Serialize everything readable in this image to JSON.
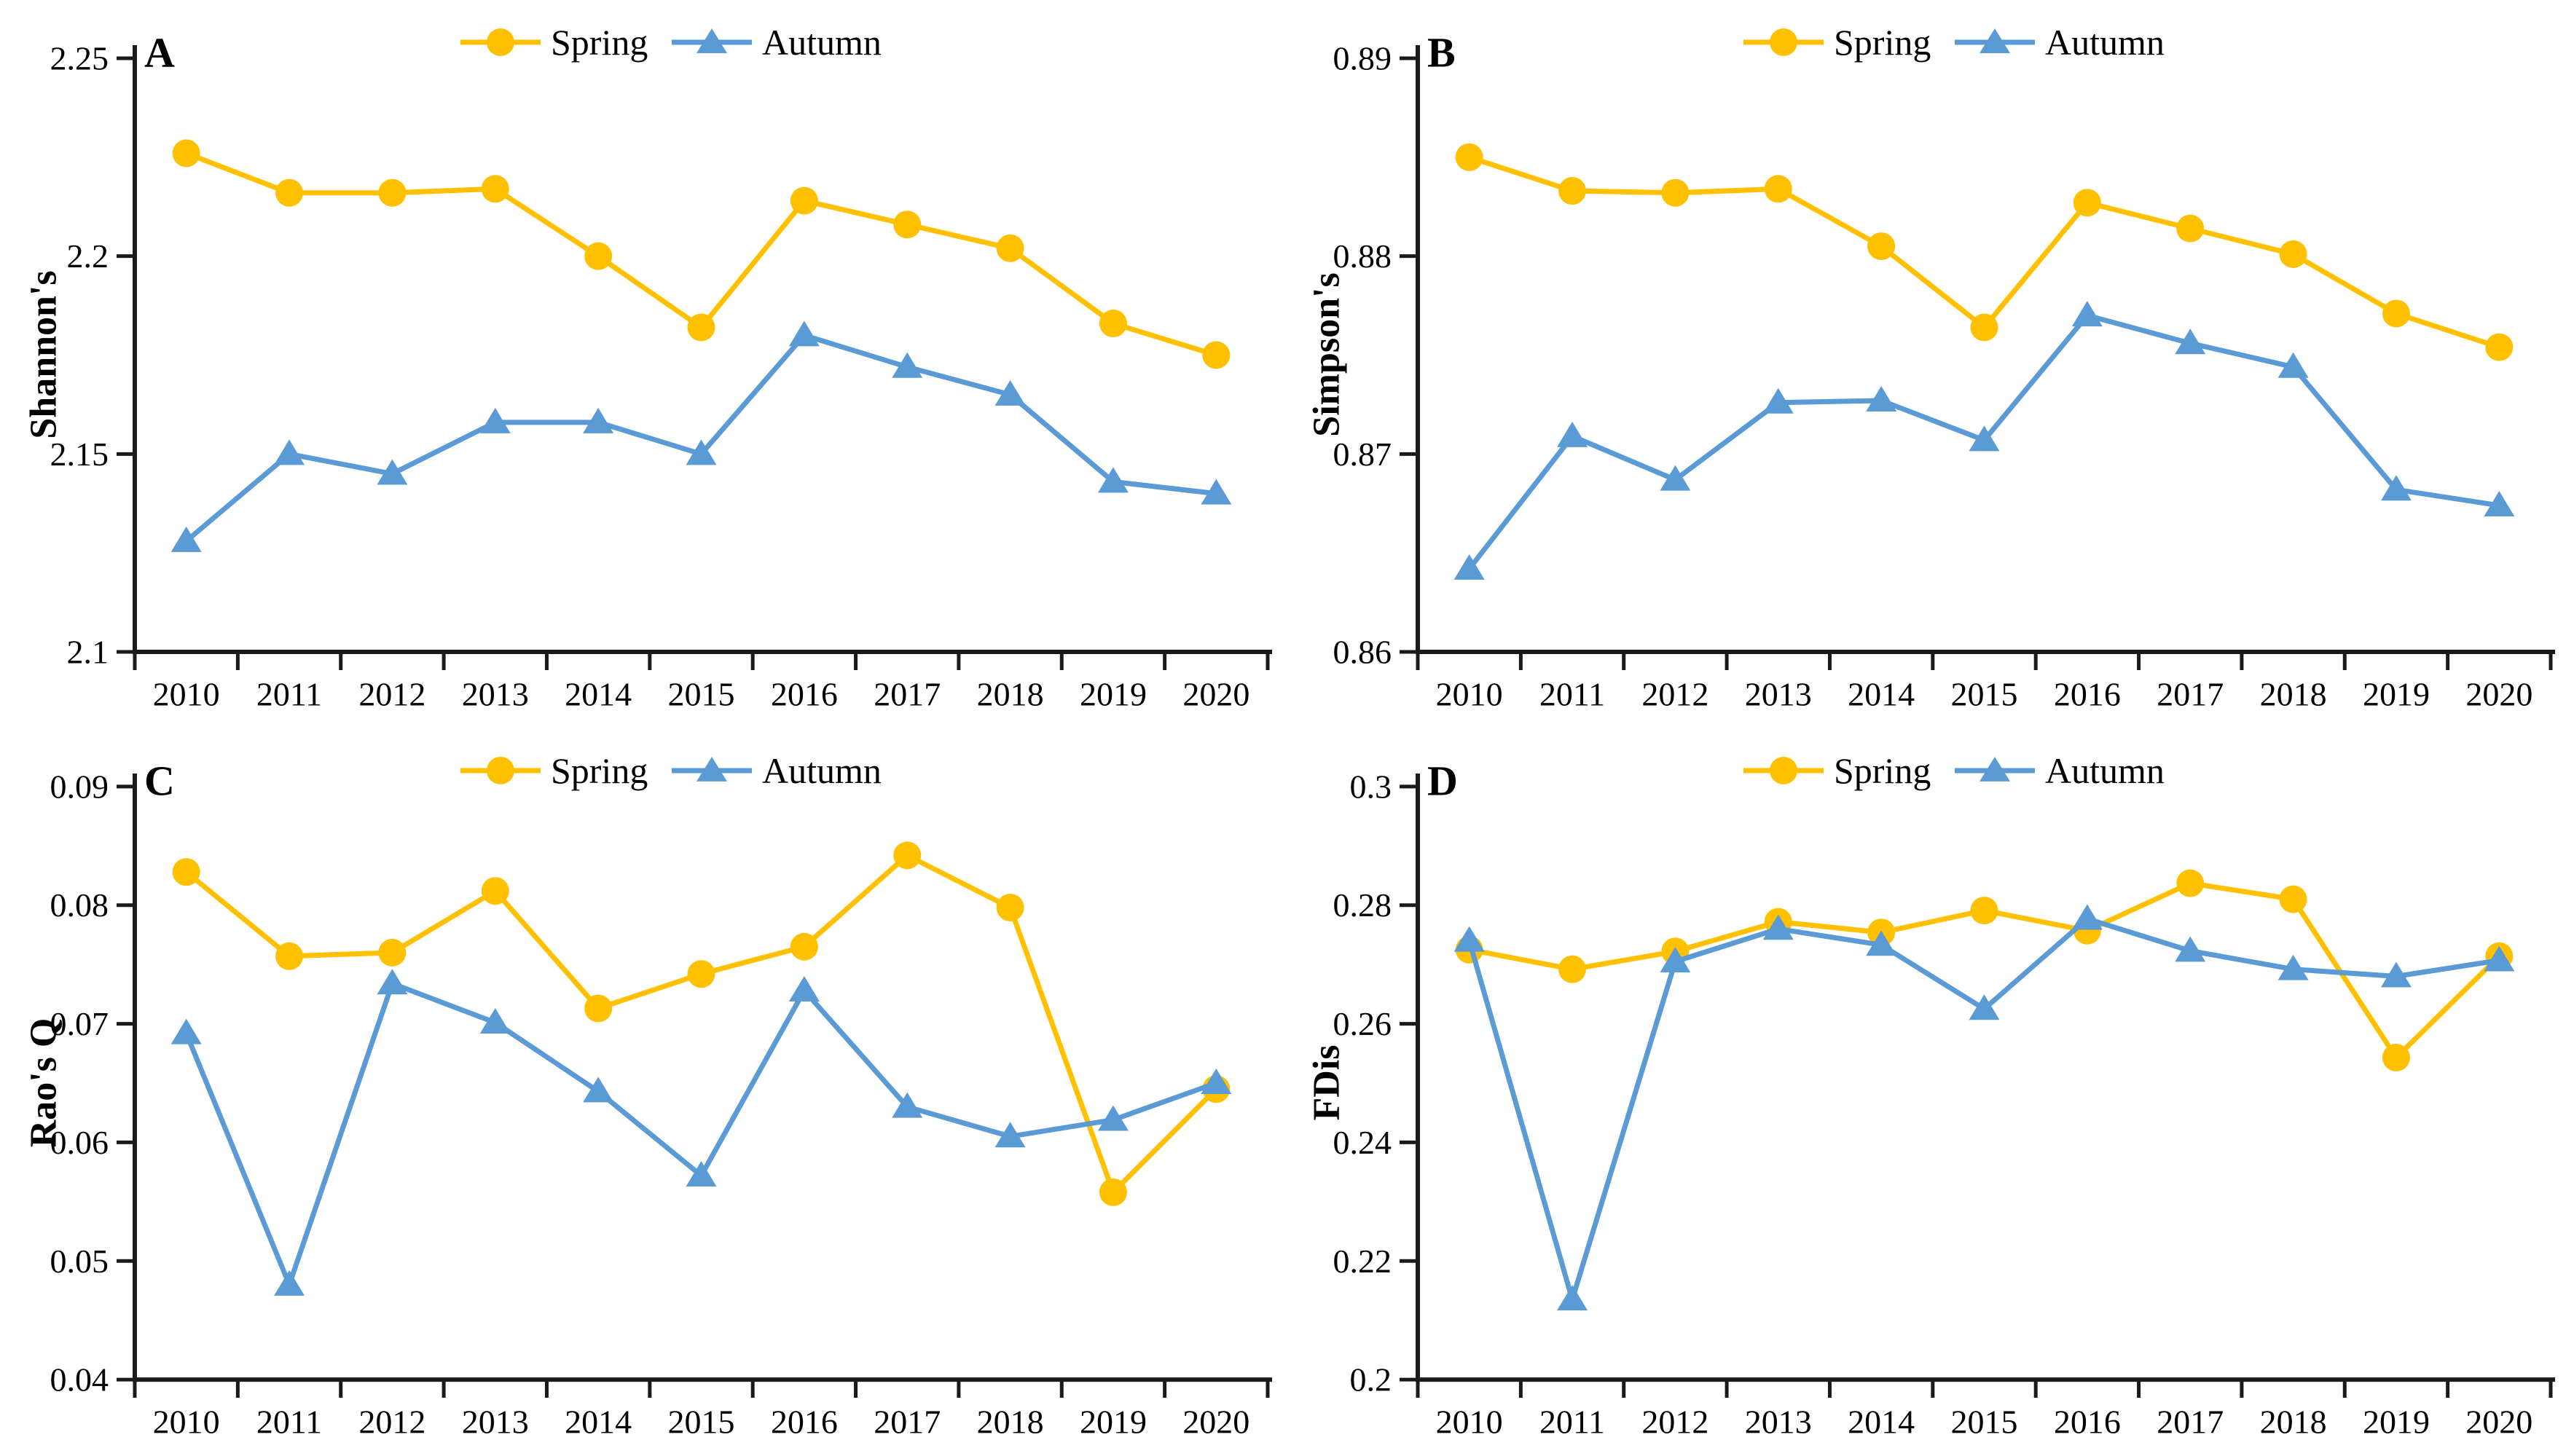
{
  "figure": {
    "background": "#ffffff",
    "text_color": "#000000",
    "axis_color": "#1a1a1a",
    "accent_colors": {
      "spring": "#FFC000",
      "autumn": "#5B9BD5"
    },
    "legend_labels": [
      "Spring",
      "Autumn"
    ]
  },
  "chart_data": [
    {
      "type": "line",
      "panel_label": "A",
      "title": "",
      "xlabel": "",
      "ylabel": "Shannon's",
      "legend_position": "top-center",
      "grid": false,
      "categories": [
        "2010",
        "2011",
        "2012",
        "2013",
        "2014",
        "2015",
        "2016",
        "2017",
        "2018",
        "2019",
        "2020"
      ],
      "ylim": [
        2.1,
        2.25
      ],
      "ytick_values": [
        2.1,
        2.15,
        2.2,
        2.25
      ],
      "ytick_labels": [
        "2.1",
        "2.15",
        "2.2",
        "2.25"
      ],
      "series": [
        {
          "name": "Spring",
          "color": "#FFC000",
          "marker": "circle",
          "values": [
            2.226,
            2.216,
            2.216,
            2.217,
            2.2,
            2.182,
            2.214,
            2.208,
            2.202,
            2.183,
            2.175
          ]
        },
        {
          "name": "Autumn",
          "color": "#5B9BD5",
          "marker": "triangle",
          "values": [
            2.128,
            2.15,
            2.145,
            2.158,
            2.158,
            2.15,
            2.18,
            2.172,
            2.165,
            2.143,
            2.14
          ]
        }
      ]
    },
    {
      "type": "line",
      "panel_label": "B",
      "title": "",
      "xlabel": "",
      "ylabel": "Simpson's",
      "legend_position": "top-center",
      "grid": false,
      "categories": [
        "2010",
        "2011",
        "2012",
        "2013",
        "2014",
        "2015",
        "2016",
        "2017",
        "2018",
        "2019",
        "2020"
      ],
      "ylim": [
        0.86,
        0.89
      ],
      "ytick_values": [
        0.86,
        0.87,
        0.88,
        0.89
      ],
      "ytick_labels": [
        "0.86",
        "0.87",
        "0.88",
        "0.89"
      ],
      "series": [
        {
          "name": "Spring",
          "color": "#FFC000",
          "marker": "circle",
          "values": [
            0.885,
            0.8833,
            0.8832,
            0.8834,
            0.8805,
            0.8764,
            0.8827,
            0.8814,
            0.8801,
            0.8771,
            0.8754
          ]
        },
        {
          "name": "Autumn",
          "color": "#5B9BD5",
          "marker": "triangle",
          "values": [
            0.8642,
            0.8709,
            0.8687,
            0.8726,
            0.8727,
            0.8707,
            0.877,
            0.8756,
            0.8744,
            0.8682,
            0.8674
          ]
        }
      ]
    },
    {
      "type": "line",
      "panel_label": "C",
      "title": "",
      "xlabel": "",
      "ylabel": "Rao's Q",
      "legend_position": "top-center",
      "grid": false,
      "categories": [
        "2010",
        "2011",
        "2012",
        "2013",
        "2014",
        "2015",
        "2016",
        "2017",
        "2018",
        "2019",
        "2020"
      ],
      "ylim": [
        0.04,
        0.09
      ],
      "ytick_values": [
        0.04,
        0.05,
        0.06,
        0.07,
        0.08,
        0.09
      ],
      "ytick_labels": [
        "0.04",
        "0.05",
        "0.06",
        "0.07",
        "0.08",
        "0.09"
      ],
      "series": [
        {
          "name": "Spring",
          "color": "#FFC000",
          "marker": "circle",
          "values": [
            0.0828,
            0.0757,
            0.076,
            0.0812,
            0.0713,
            0.0742,
            0.0765,
            0.0842,
            0.0798,
            0.0558,
            0.0645
          ]
        },
        {
          "name": "Autumn",
          "color": "#5B9BD5",
          "marker": "triangle",
          "values": [
            0.0692,
            0.048,
            0.0734,
            0.0701,
            0.0643,
            0.0572,
            0.0728,
            0.063,
            0.0605,
            0.0619,
            0.065
          ]
        }
      ]
    },
    {
      "type": "line",
      "panel_label": "D",
      "title": "",
      "xlabel": "",
      "ylabel": "FDis",
      "legend_position": "top-center",
      "grid": false,
      "categories": [
        "2010",
        "2011",
        "2012",
        "2013",
        "2014",
        "2015",
        "2016",
        "2017",
        "2018",
        "2019",
        "2020"
      ],
      "ylim": [
        0.2,
        0.3
      ],
      "ytick_values": [
        0.2,
        0.22,
        0.24,
        0.26,
        0.28,
        0.3
      ],
      "ytick_labels": [
        "0.2",
        "0.22",
        "0.24",
        "0.26",
        "0.28",
        "0.3"
      ],
      "series": [
        {
          "name": "Spring",
          "color": "#FFC000",
          "marker": "circle",
          "values": [
            0.2725,
            0.2692,
            0.2722,
            0.2772,
            0.2754,
            0.2791,
            0.2757,
            0.2837,
            0.281,
            0.2543,
            0.2714
          ]
        },
        {
          "name": "Autumn",
          "color": "#5B9BD5",
          "marker": "triangle",
          "values": [
            0.274,
            0.2135,
            0.2705,
            0.276,
            0.2733,
            0.2625,
            0.2777,
            0.2723,
            0.2692,
            0.268,
            0.2707
          ]
        }
      ]
    }
  ]
}
